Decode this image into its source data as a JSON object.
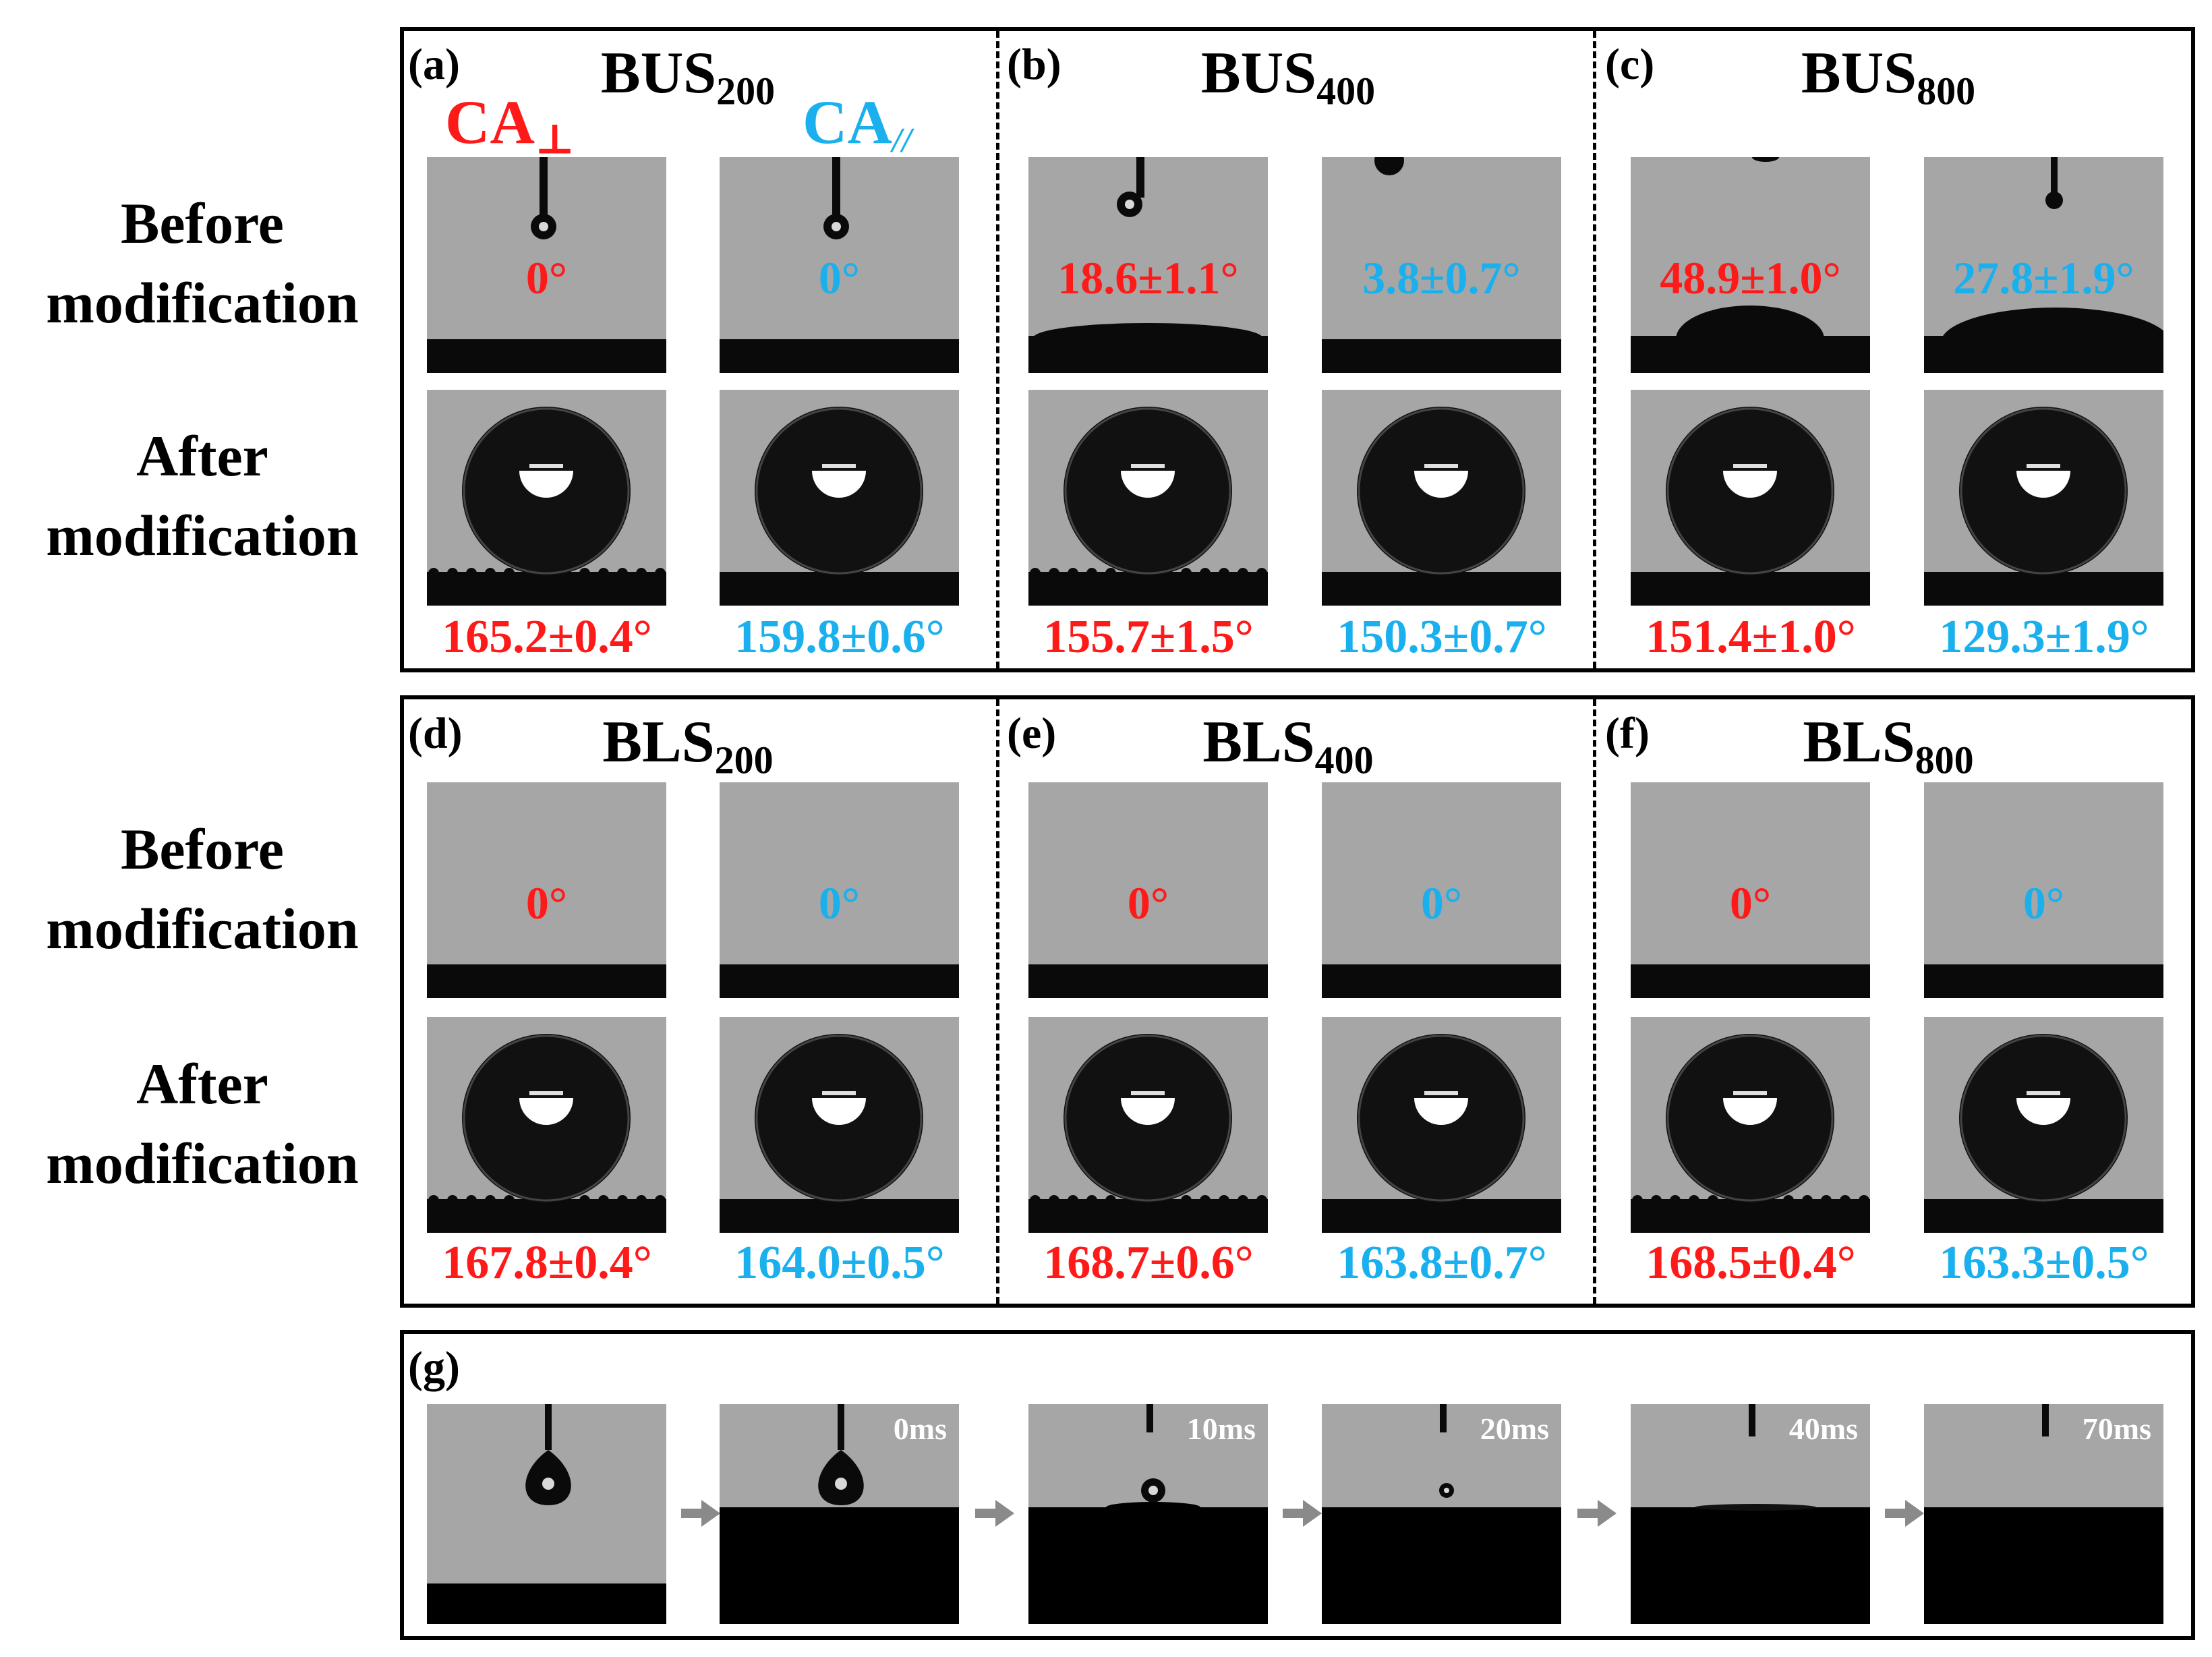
{
  "row_labels": {
    "before_line1": "Before",
    "before_line2": "modification",
    "after_line1": "After",
    "after_line2": "modification"
  },
  "legend": {
    "perp_text": "CA",
    "perp_symbol": "⊥",
    "para_text": "CA",
    "para_symbol": "//",
    "perp_color": "#ff1a1a",
    "para_color": "#1ab0ee"
  },
  "panels_top": [
    {
      "letter": "(a)",
      "name": "BUS",
      "sub": "200",
      "before_perp": "0°",
      "before_para": "0°",
      "after_perp": "165.2±0.4°",
      "after_para": "159.8±0.6°"
    },
    {
      "letter": "(b)",
      "name": "BUS",
      "sub": "400",
      "before_perp": "18.6±1.1°",
      "before_para": "3.8±0.7°",
      "after_perp": "155.7±1.5°",
      "after_para": "150.3±0.7°"
    },
    {
      "letter": "(c)",
      "name": "BUS",
      "sub": "800",
      "before_perp": "48.9±1.0°",
      "before_para": "27.8±1.9°",
      "after_perp": "151.4±1.0°",
      "after_para": "129.3±1.9°"
    }
  ],
  "panels_mid": [
    {
      "letter": "(d)",
      "name": "BLS",
      "sub": "200",
      "before_perp": "0°",
      "before_para": "0°",
      "after_perp": "167.8±0.4°",
      "after_para": "164.0±0.5°"
    },
    {
      "letter": "(e)",
      "name": "BLS",
      "sub": "400",
      "before_perp": "0°",
      "before_para": "0°",
      "after_perp": "168.7±0.6°",
      "after_para": "163.8±0.7°"
    },
    {
      "letter": "(f)",
      "name": "BLS",
      "sub": "800",
      "before_perp": "0°",
      "before_para": "0°",
      "after_perp": "168.5±0.4°",
      "after_para": "163.3±0.5°"
    }
  ],
  "panel_g": {
    "letter": "(g)",
    "times": [
      "",
      "0ms",
      "10ms",
      "20ms",
      "40ms",
      "70ms"
    ]
  }
}
